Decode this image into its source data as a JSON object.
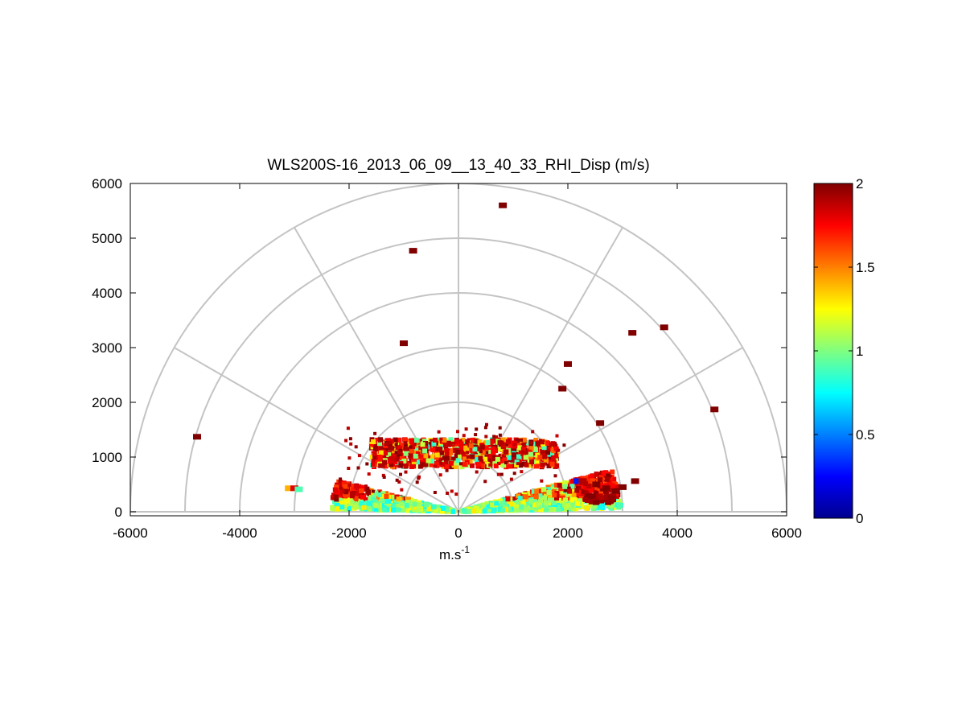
{
  "chart_data": {
    "type": "heatmap",
    "projection": "polar-half-disk (RHI scan)",
    "title": "WLS200S-16_2013_06_09__13_40_33_RHI_Disp (m/s)",
    "xlabel": "m.s",
    "xlabel_superscript": "-1",
    "ylabel": "",
    "xlim": [
      -6000,
      6000
    ],
    "ylim": [
      0,
      6000
    ],
    "x_ticks": [
      "-6000",
      "-4000",
      "-2000",
      "0",
      "2000",
      "4000",
      "6000"
    ],
    "y_ticks": [
      "0",
      "1000",
      "2000",
      "3000",
      "4000",
      "5000",
      "6000"
    ],
    "polar_rings": [
      1000,
      2000,
      3000,
      4000,
      5000,
      6000
    ],
    "polar_spokes_deg": [
      0,
      30,
      60,
      90,
      120,
      150,
      180
    ],
    "colorbar": {
      "colormap": "jet",
      "range": [
        0,
        2
      ],
      "ticks": [
        "0",
        "0.5",
        "1",
        "1.5",
        "2"
      ]
    },
    "isolated_cells": [
      {
        "x": 810,
        "y": 5600,
        "value": 2.0
      },
      {
        "x": -830,
        "y": 4770,
        "value": 2.0
      },
      {
        "x": 3180,
        "y": 3270,
        "value": 2.0
      },
      {
        "x": 3760,
        "y": 3370,
        "value": 2.0
      },
      {
        "x": -1000,
        "y": 3080,
        "value": 2.0
      },
      {
        "x": 2000,
        "y": 2700,
        "value": 2.0
      },
      {
        "x": 1900,
        "y": 2250,
        "value": 2.0
      },
      {
        "x": 4680,
        "y": 1870,
        "value": 2.0
      },
      {
        "x": 2590,
        "y": 1620,
        "value": 2.0
      },
      {
        "x": -4780,
        "y": 1370,
        "value": 2.0
      },
      {
        "x": -3100,
        "y": 430,
        "value": 1.4
      },
      {
        "x": -3000,
        "y": 430,
        "value": 1.8
      },
      {
        "x": -2920,
        "y": 410,
        "value": 0.9
      },
      {
        "x": 3230,
        "y": 560,
        "value": 2.0
      },
      {
        "x": 3000,
        "y": 450,
        "value": 2.0
      },
      {
        "x": 2700,
        "y": 430,
        "value": 2.0
      },
      {
        "x": 2880,
        "y": 380,
        "value": 2.0
      },
      {
        "x": 2180,
        "y": 560,
        "value": 0.3
      },
      {
        "x": 2270,
        "y": 560,
        "value": 1.9
      },
      {
        "x": 2520,
        "y": 500,
        "value": 2.0
      }
    ],
    "dense_region": {
      "description": "dense radar return cells within ~3000 m horizontal and ~1400 m height",
      "near_ground_range_m": [
        0,
        2900
      ],
      "upper_layer_height_m": [
        800,
        1400
      ],
      "typical_values": [
        0.8,
        2.0
      ]
    }
  }
}
